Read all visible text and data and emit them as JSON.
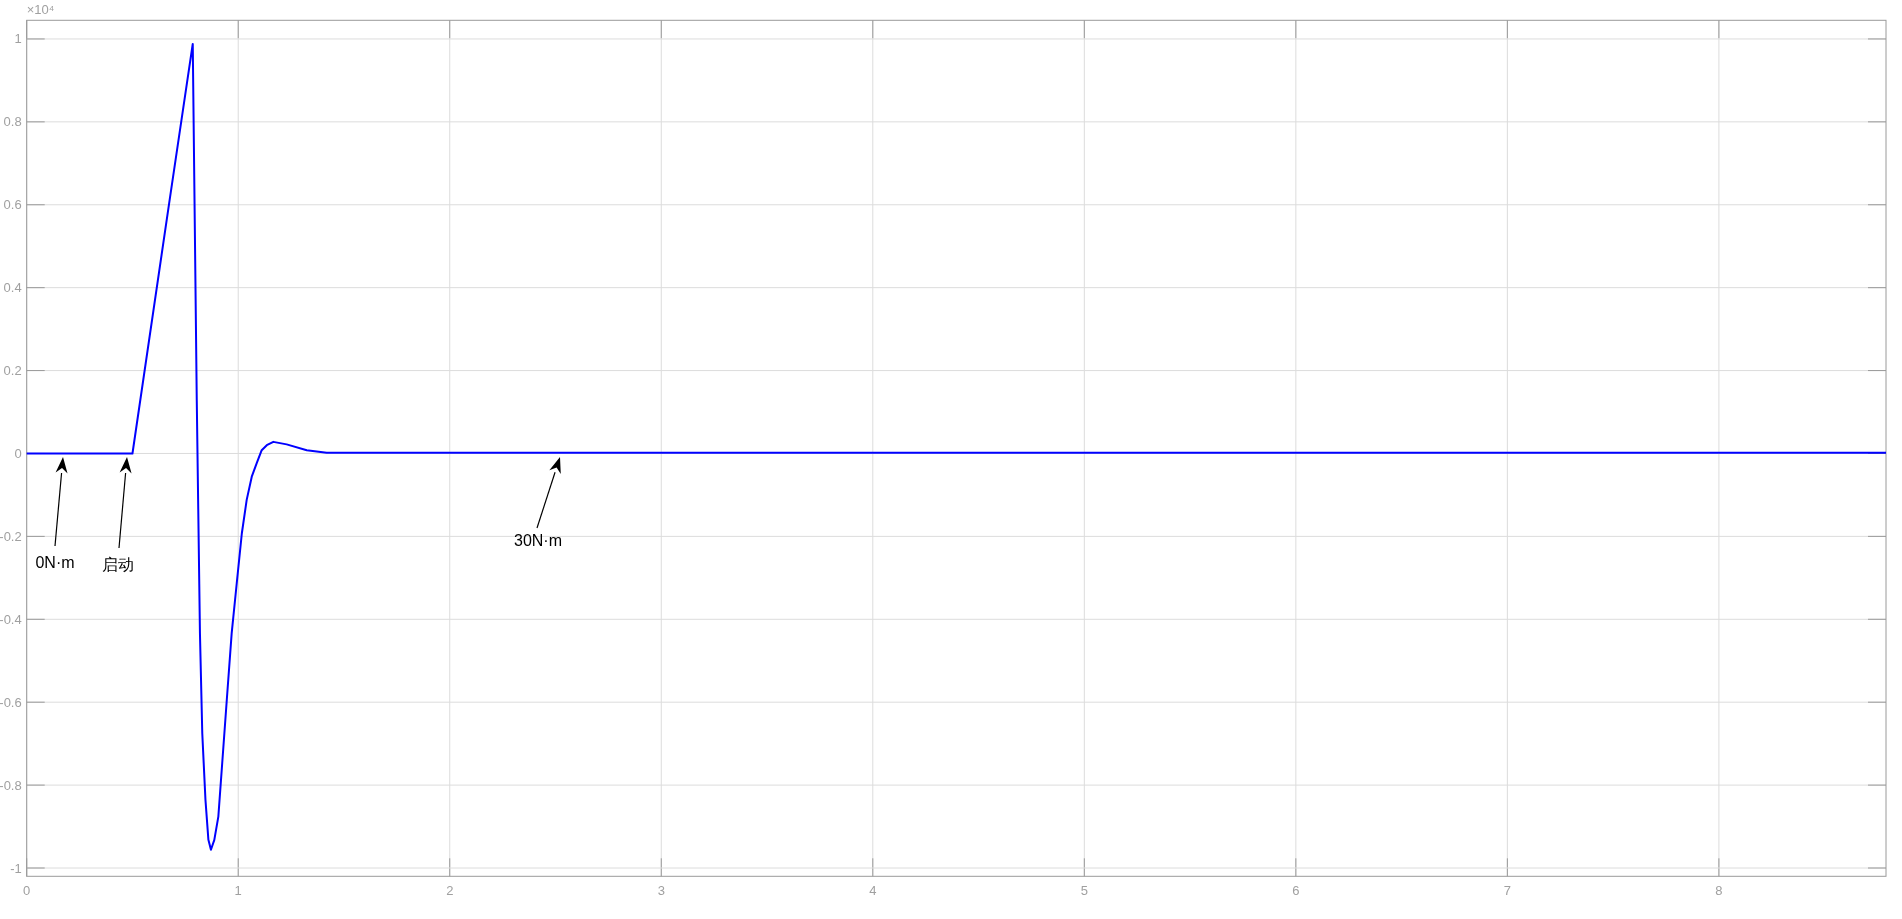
{
  "chart_data": {
    "type": "line",
    "series": [
      {
        "color": "#0000ff",
        "x": [
          0,
          0.5,
          0.673,
          0.785,
          0.804,
          0.819,
          0.83,
          0.845,
          0.859,
          0.871,
          0.887,
          0.906,
          0.946,
          0.969,
          0.993,
          1.017,
          1.04,
          1.064,
          1.087,
          1.111,
          1.135,
          1.166,
          1.229,
          1.324,
          1.418,
          1.6,
          8.79
        ],
        "values": [
          0,
          0,
          0.602,
          0.988,
          0.128,
          -0.433,
          -0.675,
          -0.835,
          -0.932,
          -0.956,
          -0.932,
          -0.876,
          -0.594,
          -0.434,
          -0.313,
          -0.193,
          -0.112,
          -0.056,
          -0.024,
          0.008,
          0.02,
          0.028,
          0.022,
          0.008,
          0.002,
          0.002,
          0.002
        ]
      }
    ],
    "xlim": [
      0,
      8.79
    ],
    "ylim": [
      -1.02,
      1.045
    ],
    "xticks": [
      0,
      1,
      2,
      3,
      4,
      5,
      6,
      7,
      8
    ],
    "yticks": [
      -1,
      -0.8,
      -0.6,
      -0.4,
      -0.2,
      0,
      0.2,
      0.4,
      0.6,
      0.8,
      1
    ],
    "grid": true,
    "annotations": [
      "×10⁴",
      "0N·m",
      "启动",
      "30N·m"
    ]
  }
}
